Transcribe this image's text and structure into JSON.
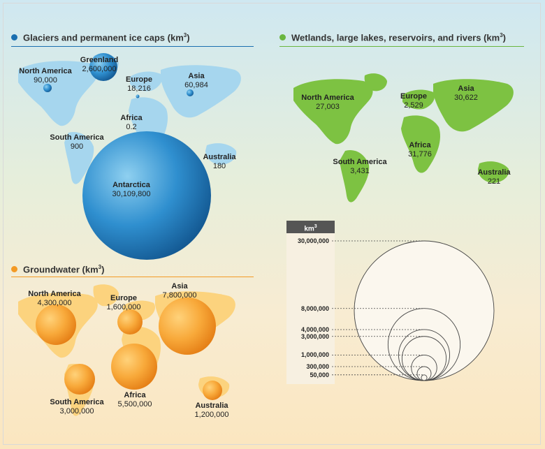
{
  "glaciers": {
    "title": "Glaciers and permanent ice caps (km",
    "title_sup": "3",
    "title_end": ")",
    "color": "#1a6fb0",
    "regions": [
      {
        "name": "North America",
        "value": "90,000"
      },
      {
        "name": "Greenland",
        "value": "2,600,000"
      },
      {
        "name": "Europe",
        "value": "18,216"
      },
      {
        "name": "Asia",
        "value": "60,984"
      },
      {
        "name": "Africa",
        "value": "0.2"
      },
      {
        "name": "South America",
        "value": "900"
      },
      {
        "name": "Australia",
        "value": "180"
      },
      {
        "name": "Antarctica",
        "value": "30,109,800"
      }
    ]
  },
  "wetlands": {
    "title": "Wetlands, large lakes, reservoirs, and rivers (km",
    "title_sup": "3",
    "title_end": ")",
    "color": "#6ab63f",
    "regions": [
      {
        "name": "North America",
        "value": "27,003"
      },
      {
        "name": "Europe",
        "value": "2,529"
      },
      {
        "name": "Asia",
        "value": "30,622"
      },
      {
        "name": "Africa",
        "value": "31,776"
      },
      {
        "name": "South America",
        "value": "3,431"
      },
      {
        "name": "Australia",
        "value": "221"
      }
    ]
  },
  "groundwater": {
    "title": "Groundwater (km",
    "title_sup": "3",
    "title_end": ")",
    "color": "#f39a25",
    "regions": [
      {
        "name": "North America",
        "value": "4,300,000"
      },
      {
        "name": "Europe",
        "value": "1,600,000"
      },
      {
        "name": "Asia",
        "value": "7,800,000"
      },
      {
        "name": "South America",
        "value": "3,000,000"
      },
      {
        "name": "Africa",
        "value": "5,500,000"
      },
      {
        "name": "Australia",
        "value": "1,200,000"
      }
    ]
  },
  "legend": {
    "unit": "km",
    "unit_sup": "3",
    "ticks": [
      {
        "label": "30,000,000",
        "value": 30000000
      },
      {
        "label": "8,000,000",
        "value": 8000000
      },
      {
        "label": "4,000,000",
        "value": 4000000
      },
      {
        "label": "3,000,000",
        "value": 3000000
      },
      {
        "label": "1,000,000",
        "value": 1000000
      },
      {
        "label": "300,000",
        "value": 300000
      },
      {
        "label": "50,000",
        "value": 50000
      }
    ]
  }
}
